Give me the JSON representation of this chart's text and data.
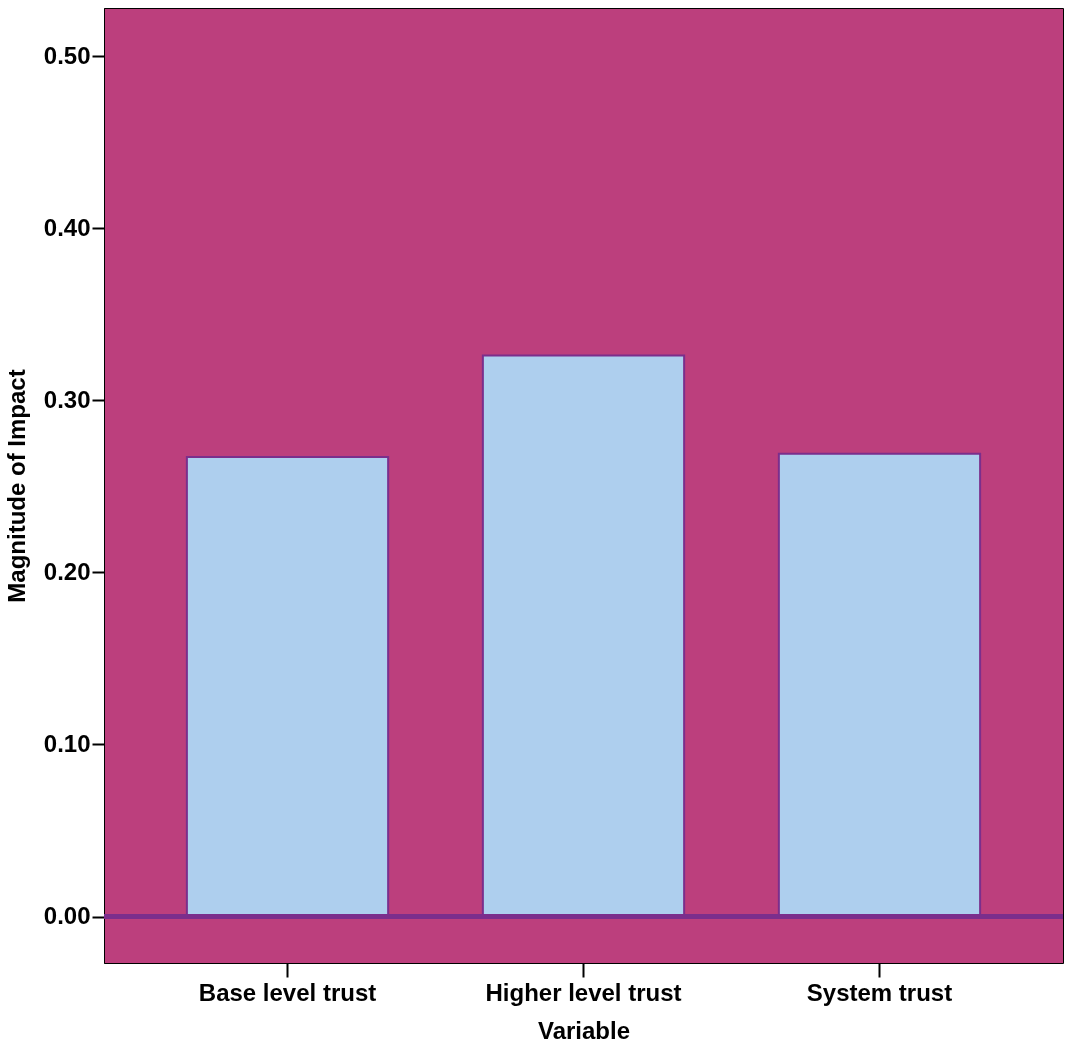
{
  "chart_data": {
    "type": "bar",
    "xlabel": "Variable",
    "ylabel": "Magnitude of Impact",
    "categories": [
      "Base level trust",
      "Higher level trust",
      "System trust"
    ],
    "values": [
      0.267,
      0.326,
      0.269
    ],
    "color": "#aecfee",
    "ylim": [
      -0.027,
      0.528
    ],
    "yticks": [
      {
        "value": 0,
        "label": "0.00"
      },
      {
        "value": 0.1,
        "label": "0.10"
      },
      {
        "value": 0.2,
        "label": "0.20"
      },
      {
        "value": 0.3,
        "label": "0.30"
      },
      {
        "value": 0.4,
        "label": "0.40"
      },
      {
        "value": 0.5,
        "label": "0.50"
      }
    ],
    "ref_lines": [
      {
        "axis": "y",
        "value": 0,
        "label": null,
        "color": "#7b2e8c"
      }
    ],
    "grid": false
  }
}
